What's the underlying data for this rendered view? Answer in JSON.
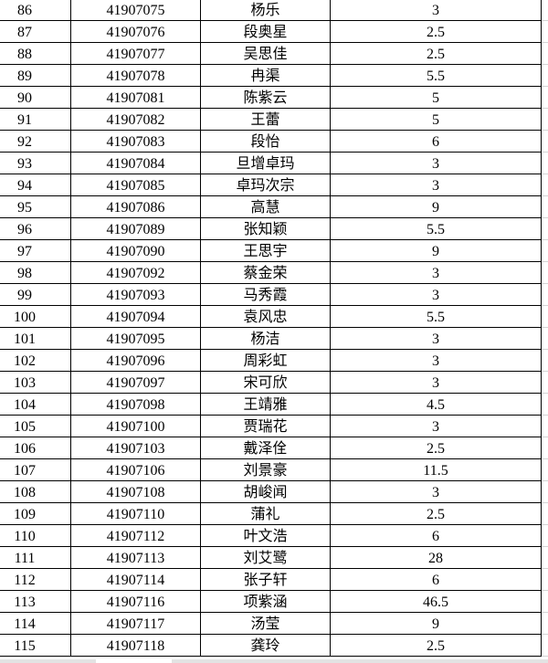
{
  "table": {
    "rows": [
      {
        "no": "86",
        "id": "41907075",
        "name": "杨乐",
        "score": "3"
      },
      {
        "no": "87",
        "id": "41907076",
        "name": "段奥星",
        "score": "2.5"
      },
      {
        "no": "88",
        "id": "41907077",
        "name": "吴思佳",
        "score": "2.5"
      },
      {
        "no": "89",
        "id": "41907078",
        "name": "冉渠",
        "score": "5.5"
      },
      {
        "no": "90",
        "id": "41907081",
        "name": "陈紫云",
        "score": "5"
      },
      {
        "no": "91",
        "id": "41907082",
        "name": "王蕾",
        "score": "5"
      },
      {
        "no": "92",
        "id": "41907083",
        "name": "段怡",
        "score": "6"
      },
      {
        "no": "93",
        "id": "41907084",
        "name": "旦增卓玛",
        "score": "3"
      },
      {
        "no": "94",
        "id": "41907085",
        "name": "卓玛次宗",
        "score": "3"
      },
      {
        "no": "95",
        "id": "41907086",
        "name": "高慧",
        "score": "9"
      },
      {
        "no": "96",
        "id": "41907089",
        "name": "张知颖",
        "score": "5.5"
      },
      {
        "no": "97",
        "id": "41907090",
        "name": "王思宇",
        "score": "9"
      },
      {
        "no": "98",
        "id": "41907092",
        "name": "蔡金荣",
        "score": "3"
      },
      {
        "no": "99",
        "id": "41907093",
        "name": "马秀霞",
        "score": "3"
      },
      {
        "no": "100",
        "id": "41907094",
        "name": "袁风忠",
        "score": "5.5"
      },
      {
        "no": "101",
        "id": "41907095",
        "name": "杨洁",
        "score": "3"
      },
      {
        "no": "102",
        "id": "41907096",
        "name": "周彩虹",
        "score": "3"
      },
      {
        "no": "103",
        "id": "41907097",
        "name": "宋可欣",
        "score": "3"
      },
      {
        "no": "104",
        "id": "41907098",
        "name": "王靖雅",
        "score": "4.5"
      },
      {
        "no": "105",
        "id": "41907100",
        "name": "贾瑞花",
        "score": "3"
      },
      {
        "no": "106",
        "id": "41907103",
        "name": "戴泽佺",
        "score": "2.5"
      },
      {
        "no": "107",
        "id": "41907106",
        "name": "刘景豪",
        "score": "11.5"
      },
      {
        "no": "108",
        "id": "41907108",
        "name": "胡峻闻",
        "score": "3"
      },
      {
        "no": "109",
        "id": "41907110",
        "name": "蒲礼",
        "score": "2.5"
      },
      {
        "no": "110",
        "id": "41907112",
        "name": "叶文浩",
        "score": "6"
      },
      {
        "no": "111",
        "id": "41907113",
        "name": "刘艾鹭",
        "score": "28"
      },
      {
        "no": "112",
        "id": "41907114",
        "name": "张子轩",
        "score": "6"
      },
      {
        "no": "113",
        "id": "41907116",
        "name": "项紫涵",
        "score": "46.5"
      },
      {
        "no": "114",
        "id": "41907117",
        "name": "汤莹",
        "score": "9"
      },
      {
        "no": "115",
        "id": "41907118",
        "name": "龚玲",
        "score": "2.5"
      }
    ]
  }
}
